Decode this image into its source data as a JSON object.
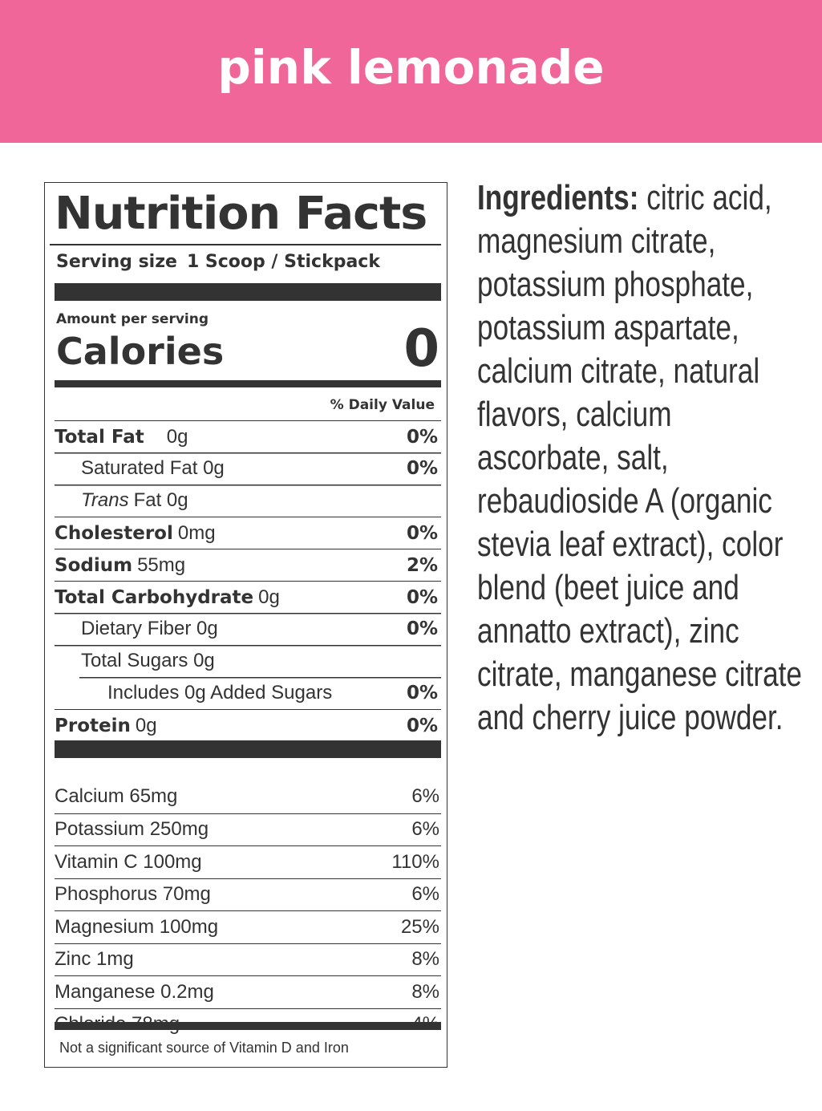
{
  "header": {
    "title": "pink lemonade",
    "bg_color": "#f06699"
  },
  "label": {
    "title": "Nutrition Facts",
    "serving_label": "Serving size",
    "serving_value": "1 Scoop / Stickpack",
    "amount_per_serving": "Amount per serving",
    "calories_label": "Calories",
    "calories_value": "0",
    "daily_value_header": "% Daily Value",
    "nutrients": [
      {
        "name": "Total Fat",
        "amount": "0g",
        "dv": "0%",
        "bold": true,
        "indent": 0
      },
      {
        "name": "Saturated Fat 0g",
        "amount": "",
        "dv": "0%",
        "bold": false,
        "indent": 1
      },
      {
        "name": "Trans",
        "amount": "Fat 0g",
        "dv": "",
        "bold": false,
        "indent": 1
      },
      {
        "name": "Cholesterol",
        "amount": "0mg",
        "dv": "0%",
        "bold": true,
        "indent": 0
      },
      {
        "name": "Sodium",
        "amount": "55mg",
        "dv": "2%",
        "bold": true,
        "indent": 0
      },
      {
        "name": "Total Carbohydrate",
        "amount": "0g",
        "dv": "0%",
        "bold": true,
        "indent": 0
      },
      {
        "name": "Dietary Fiber 0g",
        "amount": "",
        "dv": "0%",
        "bold": false,
        "indent": 1
      },
      {
        "name": "Total Sugars 0g",
        "amount": "",
        "dv": "",
        "bold": false,
        "indent": 1
      },
      {
        "name": "Includes 0g Added Sugars",
        "amount": "",
        "dv": "0%",
        "bold": false,
        "indent": 2
      },
      {
        "name": "Protein",
        "amount": "0g",
        "dv": "0%",
        "bold": true,
        "indent": 0
      }
    ],
    "vitamins": [
      {
        "name": "Calcium 65mg",
        "dv": "6%"
      },
      {
        "name": "Potassium 250mg",
        "dv": "6%"
      },
      {
        "name": "Vitamin C 100mg",
        "dv": "110%"
      },
      {
        "name": "Phosphorus 70mg",
        "dv": "6%"
      },
      {
        "name": "Magnesium 100mg",
        "dv": "25%"
      },
      {
        "name": "Zinc 1mg",
        "dv": "8%"
      },
      {
        "name": "Manganese 0.2mg",
        "dv": "8%"
      },
      {
        "name": "Chloride 78mg",
        "dv": "4%"
      }
    ],
    "footnote": "Not a significant source of Vitamin D and Iron"
  },
  "ingredients": {
    "label": "Ingredients:",
    "lines": [
      " citric acid,",
      "magnesium citrate,",
      "potassium phosphate,",
      "potassium aspartate,",
      "calcium citrate, natural",
      "flavors, calcium",
      "ascorbate, salt,",
      "rebaudioside A (organic",
      "stevia leaf extract), color",
      "blend (beet juice and",
      "annatto extract), zinc",
      "citrate, manganese citrate",
      "and cherry juice powder."
    ]
  }
}
